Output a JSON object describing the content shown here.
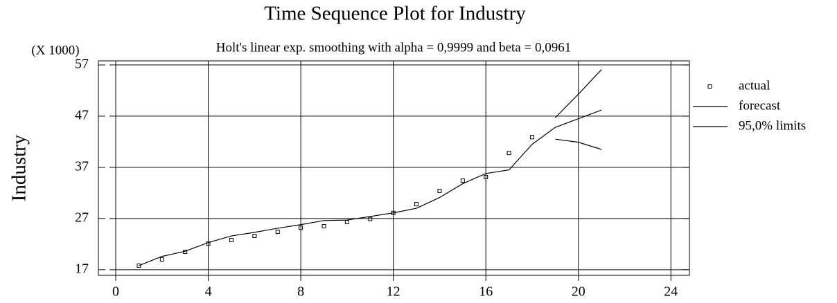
{
  "chart_data": {
    "type": "line",
    "title": "Time Sequence Plot for Industry",
    "subtitle": "Holt's linear exp. smoothing with alpha = 0,9999 and beta = 0,0961",
    "y_label": "Industry",
    "y_multiplier_label": "(X 1000)",
    "x": [
      1,
      2,
      3,
      4,
      5,
      6,
      7,
      8,
      9,
      10,
      11,
      12,
      13,
      14,
      15,
      16,
      17,
      18,
      19,
      20,
      21
    ],
    "series": [
      {
        "name": "actual",
        "color": "#000000",
        "marker": "square",
        "values": [
          17.8,
          19.0,
          20.5,
          22.1,
          22.8,
          23.6,
          24.4,
          25.2,
          25.5,
          26.3,
          26.9,
          28.1,
          29.8,
          32.4,
          34.4,
          35.1,
          39.8,
          42.9,
          null,
          null,
          null
        ]
      },
      {
        "name": "forecast",
        "color": "#000000",
        "marker": "line",
        "values": [
          17.8,
          19.6,
          20.6,
          22.3,
          23.6,
          24.3,
          25.1,
          25.8,
          26.6,
          26.7,
          27.4,
          28.1,
          29.0,
          31.1,
          33.8,
          35.8,
          36.5,
          41.5,
          44.8,
          46.5,
          48.2
        ]
      },
      {
        "name": "95,0% limits",
        "color": "#000000",
        "marker": "line",
        "values": [
          null,
          null,
          null,
          null,
          null,
          null,
          null,
          null,
          null,
          null,
          null,
          null,
          null,
          null,
          null,
          null,
          null,
          null,
          46.7,
          51.3,
          56.1
        ]
      },
      {
        "name": null,
        "color": "#000000",
        "marker": "line",
        "values": [
          null,
          null,
          null,
          null,
          null,
          null,
          null,
          null,
          null,
          null,
          null,
          null,
          null,
          null,
          null,
          null,
          null,
          null,
          42.5,
          41.9,
          40.5
        ]
      }
    ],
    "xlim": [
      -0.75,
      24.8
    ],
    "xticks": [
      0,
      4,
      8,
      12,
      16,
      20,
      24
    ],
    "ylim": [
      15.9,
      57.8
    ],
    "yticks": [
      17,
      27,
      37,
      47,
      57
    ],
    "grid": true,
    "legend": "right"
  }
}
